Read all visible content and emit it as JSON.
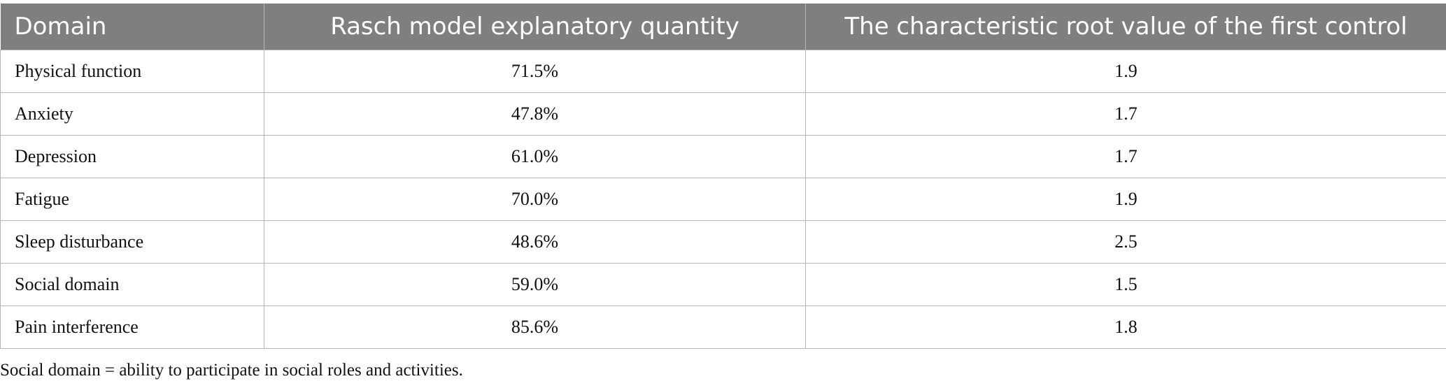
{
  "table": {
    "headers": [
      "Domain",
      "Rasch model explanatory quantity",
      "The characteristic root value of the first control"
    ],
    "rows": [
      [
        "Physical function",
        "71.5%",
        "1.9"
      ],
      [
        "Anxiety",
        "47.8%",
        "1.7"
      ],
      [
        "Depression",
        "61.0%",
        "1.7"
      ],
      [
        "Fatigue",
        "70.0%",
        "1.9"
      ],
      [
        "Sleep disturbance",
        "48.6%",
        "2.5"
      ],
      [
        "Social domain",
        "59.0%",
        "1.5"
      ],
      [
        "Pain interference",
        "85.6%",
        "1.8"
      ]
    ]
  },
  "footnote": "Social domain = ability to participate in social roles and activities."
}
